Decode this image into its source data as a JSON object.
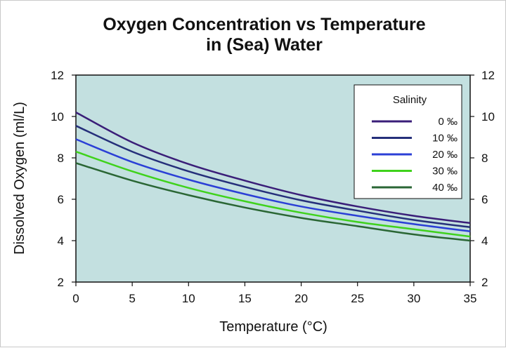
{
  "chart_data": {
    "type": "line",
    "title": [
      "Oxygen Concentration vs Temperature",
      "in (Sea) Water"
    ],
    "xlabel": "Temperature (°C)",
    "ylabel": "Dissolved Oxygen (ml/L)",
    "xlim": [
      0,
      35
    ],
    "ylim": [
      2,
      12
    ],
    "x_ticks": [
      "0",
      "5",
      "10",
      "15",
      "20",
      "25",
      "30",
      "35"
    ],
    "y_ticks": [
      "2",
      "4",
      "6",
      "8",
      "10",
      "12"
    ],
    "y_ticks_right": [
      "2",
      "4",
      "6",
      "8",
      "10",
      "12"
    ],
    "grid": false,
    "legend": {
      "title": "Salinity",
      "placement": "top-right"
    },
    "x": [
      0,
      5,
      10,
      15,
      20,
      25,
      30,
      35
    ],
    "series": [
      {
        "name": "0 ‰",
        "color": "#3a1e78",
        "values": [
          10.2,
          8.75,
          7.7,
          6.9,
          6.2,
          5.65,
          5.2,
          4.85
        ]
      },
      {
        "name": "10 ‰",
        "color": "#252f7a",
        "values": [
          9.55,
          8.3,
          7.35,
          6.6,
          5.95,
          5.45,
          5.0,
          4.65
        ]
      },
      {
        "name": "20 ‰",
        "color": "#2b3fd6",
        "values": [
          8.9,
          7.8,
          6.95,
          6.25,
          5.65,
          5.2,
          4.8,
          4.45
        ]
      },
      {
        "name": "30 ‰",
        "color": "#3fd21c",
        "values": [
          8.3,
          7.35,
          6.55,
          5.9,
          5.35,
          4.9,
          4.55,
          4.2
        ]
      },
      {
        "name": "40 ‰",
        "color": "#2a6634",
        "values": [
          7.75,
          6.9,
          6.2,
          5.6,
          5.1,
          4.7,
          4.3,
          4.0
        ]
      }
    ],
    "colors": {
      "plot_background": "#c3e0e0",
      "axis": "#111111"
    }
  }
}
